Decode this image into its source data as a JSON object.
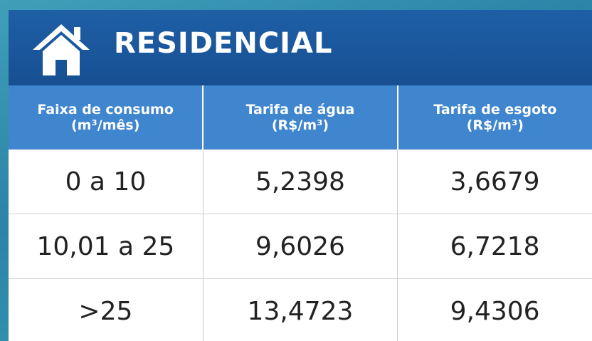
{
  "header": {
    "title": "RESIDENCIAL"
  },
  "table": {
    "columns": [
      [
        "Faixa de consumo",
        "(m³/mês)"
      ],
      [
        "Tarifa de água",
        "(R$/m³)"
      ],
      [
        "Tarifa de esgoto",
        "(R$/m³)"
      ]
    ],
    "rows": [
      [
        "0 a 10",
        "5,2398",
        "3,6679"
      ],
      [
        "10,01 a 25",
        "9,6026",
        "6,7218"
      ],
      [
        ">25",
        "13,4723",
        "9,4306"
      ]
    ]
  }
}
